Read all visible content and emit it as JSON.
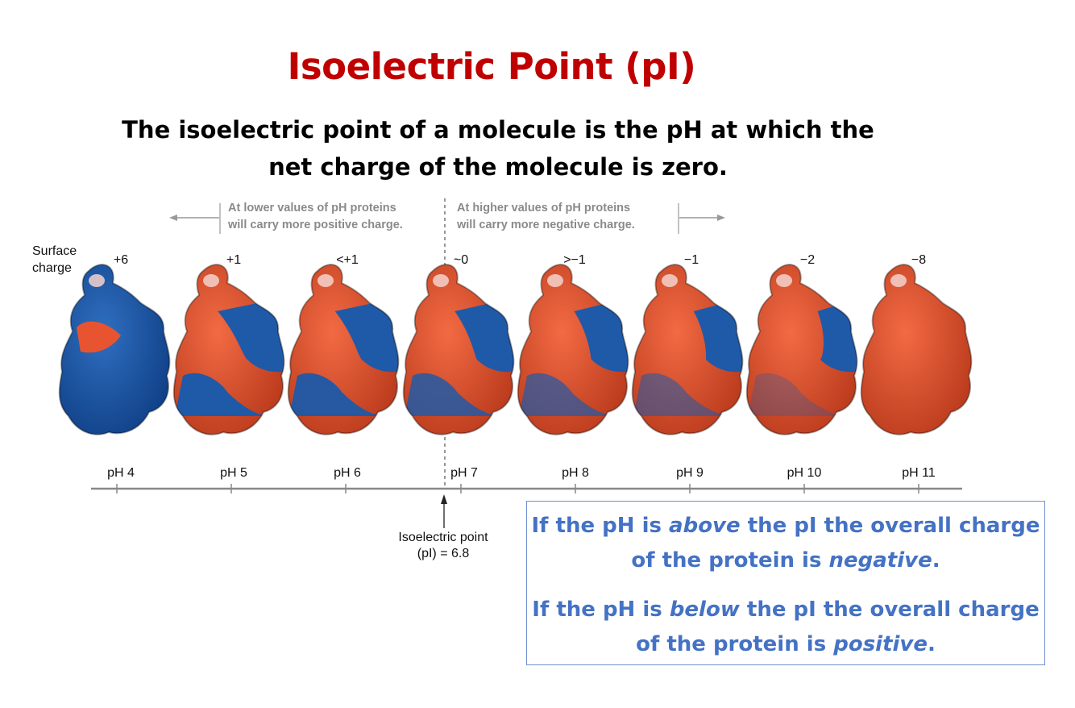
{
  "title": "Isoelectric Point (pI)",
  "definition": {
    "line1": "The isoelectric point of a molecule is the pH at which the",
    "line2": "net charge of the molecule is zero."
  },
  "notes": {
    "lower": {
      "line1": "At lower values of pH proteins",
      "line2": "will carry more positive charge."
    },
    "higher": {
      "line1": "At higher values of pH proteins",
      "line2": "will carry more negative charge."
    }
  },
  "surface_charge_label": {
    "line1": "Surface",
    "line2": "charge"
  },
  "proteins": [
    {
      "ph": "pH 4",
      "charge": "+6",
      "positive_fraction": 0.85
    },
    {
      "ph": "pH 5",
      "charge": "+1",
      "positive_fraction": 0.52
    },
    {
      "ph": "pH 6",
      "charge": "<+1",
      "positive_fraction": 0.48
    },
    {
      "ph": "pH 7",
      "charge": "~0",
      "positive_fraction": 0.42
    },
    {
      "ph": "pH 8",
      "charge": ">−1",
      "positive_fraction": 0.35
    },
    {
      "ph": "pH 9",
      "charge": "−1",
      "positive_fraction": 0.28
    },
    {
      "ph": "pH 10",
      "charge": "−2",
      "positive_fraction": 0.15
    },
    {
      "ph": "pH 11",
      "charge": "−8",
      "positive_fraction": 0.0
    }
  ],
  "isoelectric_point": {
    "line1": "Isoelectric point",
    "line2": "(pI) = 6.8"
  },
  "info_box": {
    "p1": {
      "a": "If the pH is ",
      "b": "above",
      "c": " the pI the overall charge",
      "d": "of the protein is ",
      "e": "negative",
      "f": "."
    },
    "p2": {
      "a": "If the pH is ",
      "b": "below",
      "c": " the pI the overall charge",
      "d": "of the protein is ",
      "e": "positive",
      "f": "."
    }
  },
  "colors": {
    "title": "#c00000",
    "info_text": "#4472c4",
    "info_border": "#6f8fd0",
    "positive_surface": "#1f5aa8",
    "negative_surface": "#e8542f",
    "note_text": "#8a8a8a"
  }
}
